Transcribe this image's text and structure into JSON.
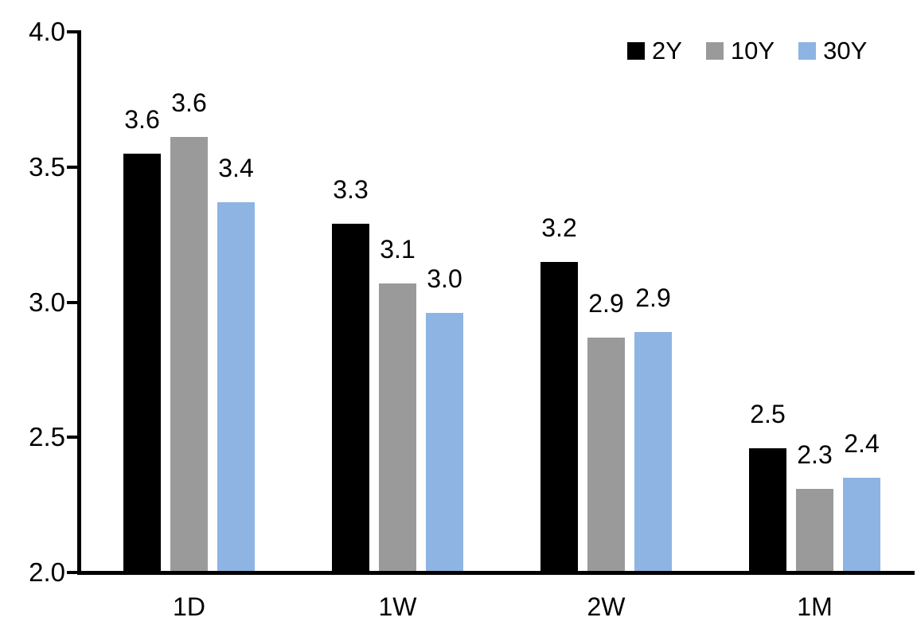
{
  "chart_data": {
    "type": "bar",
    "title": "",
    "xlabel": "",
    "ylabel": "",
    "categories": [
      "1D",
      "1W",
      "2W",
      "1M"
    ],
    "series": [
      {
        "name": "2Y",
        "color": "#000000",
        "values": [
          3.55,
          3.29,
          3.15,
          2.46
        ],
        "data_labels": [
          "3.6",
          "3.3",
          "3.2",
          "2.5"
        ]
      },
      {
        "name": "10Y",
        "color": "#9a9a9a",
        "values": [
          3.61,
          3.07,
          2.87,
          2.31
        ],
        "data_labels": [
          "3.6",
          "3.1",
          "2.9",
          "2.3"
        ]
      },
      {
        "name": "30Y",
        "color": "#8db4e2",
        "values": [
          3.37,
          2.96,
          2.89,
          2.35
        ],
        "data_labels": [
          "3.4",
          "3.0",
          "2.9",
          "2.4"
        ]
      }
    ],
    "y_axis": {
      "min": 2.0,
      "max": 4.0,
      "tick_values": [
        4.0,
        3.5,
        3.0,
        2.5,
        2.0
      ],
      "tick_labels": [
        "4.0",
        "3.5",
        "3.0",
        "2.5",
        "2.0"
      ]
    },
    "legend": {
      "position": "top-right",
      "entries": [
        "2Y",
        "10Y",
        "30Y"
      ]
    },
    "grid": false,
    "background_color": "#ffffff",
    "axis_color": "#000000",
    "text_color": "#000000"
  }
}
